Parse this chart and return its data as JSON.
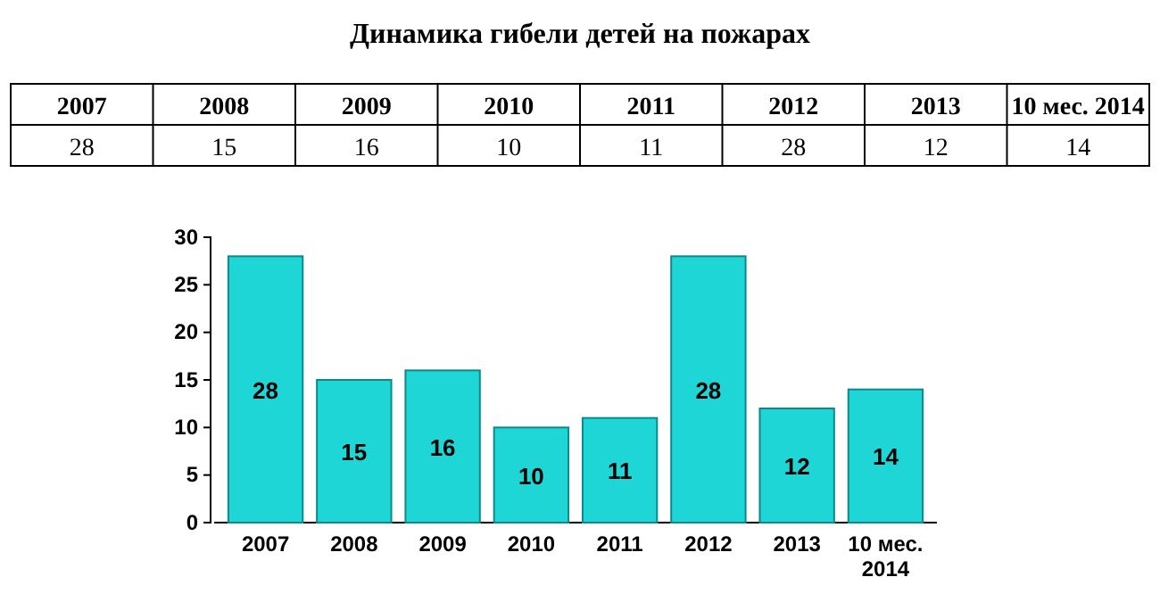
{
  "chart_data": {
    "type": "bar",
    "title": "Динамика гибели детей на пожарах",
    "categories": [
      "2007",
      "2008",
      "2009",
      "2010",
      "2011",
      "2012",
      "2013",
      "10 мес. 2014"
    ],
    "values": [
      28,
      15,
      16,
      10,
      11,
      28,
      12,
      14
    ],
    "annotations": [
      "28",
      "15",
      "16",
      "10",
      "11",
      "28",
      "12",
      "14"
    ],
    "color": "#1fd6d6",
    "ylim": [
      0,
      30
    ],
    "yticks": [
      0,
      5,
      10,
      15,
      20,
      25,
      30
    ],
    "grid": false,
    "data_labels": true
  }
}
